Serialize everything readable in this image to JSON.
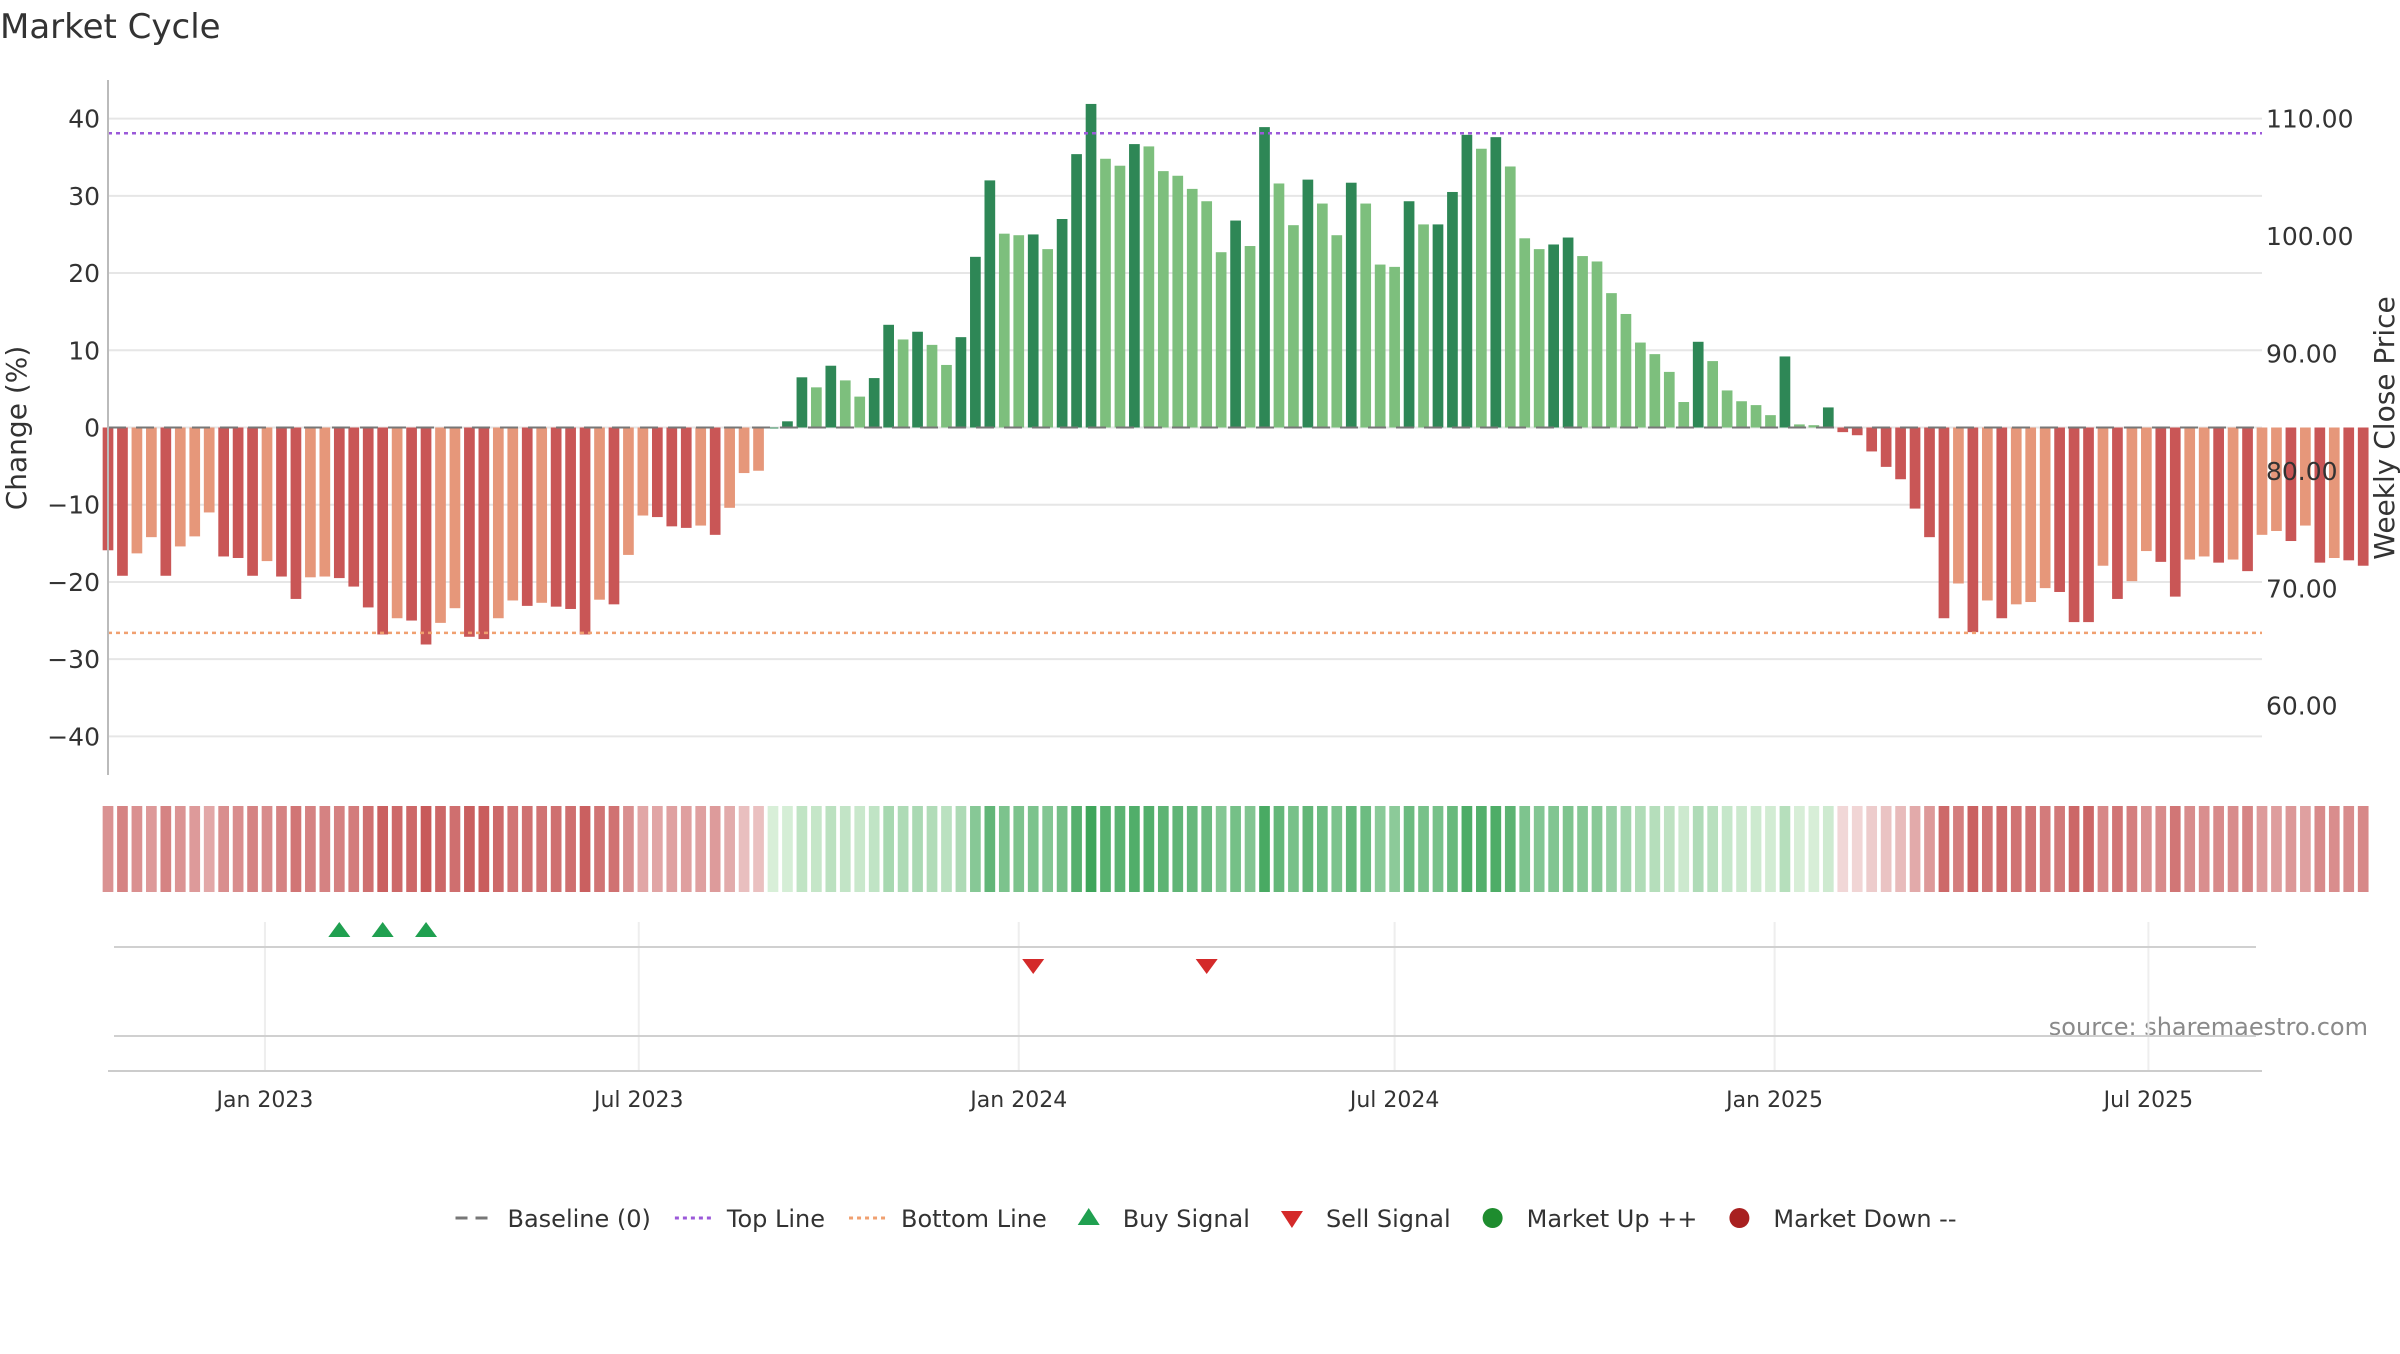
{
  "chart_data": {
    "type": "bar",
    "title": "Market Cycle",
    "ylabel": "Change (%)",
    "y2label": "Weekly Close Price",
    "ylim": [
      -45,
      45
    ],
    "y2lim": [
      54.1,
      113.3
    ],
    "yticks": [
      40,
      30,
      20,
      10,
      0,
      -10,
      -20,
      -30,
      -40
    ],
    "ytick_labels": [
      "40",
      "30",
      "20",
      "10",
      "0",
      "−10",
      "−20",
      "−30",
      "−40"
    ],
    "y2ticks": [
      110,
      100,
      90,
      80,
      70,
      60
    ],
    "y2tick_labels": [
      "110.00",
      "100.00",
      "90.00",
      "80.00",
      "70.00",
      "60.00"
    ],
    "x_start": "2022-10-17",
    "x_end": "2025-08-25",
    "xticks": [
      "2023-01-01",
      "2023-07-01",
      "2024-01-01",
      "2024-07-01",
      "2025-01-01",
      "2025-07-01"
    ],
    "xtick_labels": [
      "Jan 2023",
      "Jul 2023",
      "Jan 2024",
      "Jul 2024",
      "Jan 2025",
      "Jul 2025"
    ],
    "first_week": "2022-10-17",
    "values": [
      -15.9,
      -19.2,
      -16.3,
      -14.2,
      -19.2,
      -15.4,
      -14.1,
      -11.0,
      -16.7,
      -16.9,
      -19.2,
      -17.3,
      -19.3,
      -22.2,
      -19.4,
      -19.3,
      -19.5,
      -20.6,
      -23.3,
      -26.8,
      -24.7,
      -25.0,
      -28.1,
      -25.3,
      -23.4,
      -27.1,
      -27.4,
      -24.7,
      -22.4,
      -23.1,
      -22.7,
      -23.2,
      -23.5,
      -26.8,
      -22.3,
      -22.9,
      -16.5,
      -11.4,
      -11.6,
      -12.8,
      -13.0,
      -12.7,
      -13.9,
      -10.4,
      -5.9,
      -5.6,
      0.0,
      0.8,
      6.5,
      5.2,
      8.0,
      6.1,
      4.0,
      6.4,
      13.3,
      11.4,
      12.4,
      10.7,
      8.1,
      11.7,
      22.1,
      32.0,
      25.1,
      24.9,
      25.0,
      23.1,
      27.0,
      35.4,
      41.9,
      34.8,
      33.9,
      36.7,
      36.4,
      33.2,
      32.6,
      30.9,
      29.3,
      22.7,
      26.8,
      23.5,
      38.9,
      31.6,
      26.2,
      32.1,
      29.0,
      24.9,
      31.7,
      29.0,
      21.1,
      20.8,
      29.3,
      26.3,
      26.3,
      30.5,
      37.9,
      36.1,
      37.6,
      33.8,
      24.5,
      23.1,
      23.7,
      24.6,
      22.2,
      21.5,
      17.4,
      14.7,
      11.0,
      9.5,
      7.2,
      3.3,
      11.1,
      8.6,
      4.8,
      3.4,
      2.9,
      1.6,
      9.2,
      0.4,
      0.3,
      2.6,
      -0.6,
      -1.0,
      -3.1,
      -5.1,
      -6.7,
      -10.5,
      -14.2,
      -24.7,
      -20.2,
      -26.5,
      -22.4,
      -24.7,
      -22.9,
      -22.6,
      -20.8,
      -21.3,
      -25.2,
      -25.2,
      -17.9,
      -22.2,
      -19.9,
      -16.0,
      -17.4,
      -21.9,
      -17.1,
      -16.7,
      -17.5,
      -17.1,
      -18.6,
      -13.9,
      -13.4,
      -14.7,
      -12.7,
      -17.5,
      -16.9,
      -17.2,
      -17.9
    ],
    "reference_lines": {
      "baseline": 0,
      "top": 38.1,
      "bottom": -26.6
    },
    "buy_signals": [
      "2023-02-06",
      "2023-02-27",
      "2023-03-20"
    ],
    "sell_signals": [
      "2024-01-08",
      "2024-04-01"
    ],
    "legend": {
      "position": "bottom-center",
      "items": [
        {
          "label": "Baseline (0)",
          "marker": "dash",
          "color": "#777777"
        },
        {
          "label": "Top Line",
          "marker": "dotted",
          "color": "#9b59d9"
        },
        {
          "label": "Bottom Line",
          "marker": "dotted",
          "color": "#f0a070"
        },
        {
          "label": "Buy Signal",
          "marker": "triangle-up",
          "color": "#20a050"
        },
        {
          "label": "Sell Signal",
          "marker": "triangle-down",
          "color": "#d42a2a"
        },
        {
          "label": "Market Up ++",
          "marker": "circle",
          "color": "#1e8c2e"
        },
        {
          "label": "Market Down --",
          "marker": "circle",
          "color": "#a82020"
        }
      ]
    },
    "source": "source: sharemaestro.com",
    "grid": true
  },
  "colors": {
    "strong_up": "#2e8756",
    "weak_up": "#7dbf7d",
    "strong_down": "#c95656",
    "weak_down": "#e6977a",
    "top_line": "#9b59d9",
    "bottom_line": "#f0a070",
    "baseline": "#777777",
    "buy": "#20a050",
    "sell": "#d42a2a",
    "grid": "#e6e6e6",
    "text": "#333333",
    "source_text": "#8a8a8a"
  }
}
